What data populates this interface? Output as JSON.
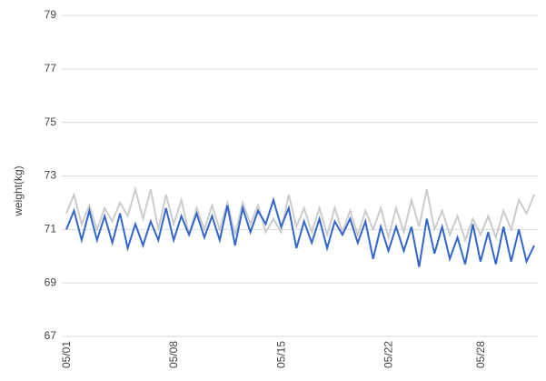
{
  "chart_data": {
    "type": "line",
    "y_label": "weight(kg)",
    "categories": [
      "05/01",
      null,
      null,
      null,
      null,
      null,
      null,
      null,
      null,
      null,
      null,
      null,
      null,
      null,
      "05/08",
      null,
      null,
      null,
      null,
      null,
      null,
      null,
      null,
      null,
      null,
      null,
      null,
      null,
      "05/15",
      null,
      null,
      null,
      null,
      null,
      null,
      null,
      null,
      null,
      null,
      null,
      null,
      null,
      "05/22",
      null,
      null,
      null,
      null,
      null,
      null,
      null,
      null,
      null,
      null,
      null,
      "05/28",
      null,
      null,
      null,
      null,
      null,
      null,
      null
    ],
    "series": [
      {
        "color": "#cccccc",
        "values": [
          71.6,
          72.3,
          71.2,
          71.9,
          71.0,
          71.8,
          71.3,
          72.0,
          71.5,
          72.5,
          71.4,
          72.5,
          71.0,
          72.3,
          71.2,
          72.1,
          70.8,
          71.8,
          71.0,
          71.9,
          71.0,
          72.0,
          70.8,
          72.0,
          71.2,
          71.9,
          70.9,
          71.4,
          70.9,
          72.3,
          71.1,
          71.8,
          70.9,
          71.8,
          70.8,
          71.8,
          70.9,
          71.7,
          70.8,
          71.7,
          71.0,
          71.8,
          70.7,
          71.8,
          70.9,
          72.1,
          71.1,
          72.5,
          71.0,
          71.7,
          70.8,
          71.5,
          70.6,
          71.4,
          70.8,
          71.5,
          70.7,
          71.7,
          71.0,
          72.1,
          71.6,
          72.3
        ]
      },
      {
        "color": "#3366cc",
        "values": [
          71.0,
          71.7,
          70.6,
          71.7,
          70.6,
          71.5,
          70.5,
          71.6,
          70.3,
          71.2,
          70.4,
          71.3,
          70.6,
          71.8,
          70.6,
          71.5,
          70.8,
          71.6,
          70.7,
          71.5,
          70.6,
          71.9,
          70.4,
          71.8,
          70.9,
          71.7,
          71.2,
          72.1,
          71.1,
          71.8,
          70.3,
          71.3,
          70.5,
          71.4,
          70.3,
          71.3,
          70.8,
          71.4,
          70.5,
          71.3,
          69.9,
          71.1,
          70.2,
          71.1,
          70.2,
          71.1,
          69.6,
          71.4,
          70.1,
          71.1,
          69.9,
          70.7,
          69.7,
          71.2,
          69.8,
          70.9,
          69.7,
          71.1,
          69.8,
          71.0,
          69.8,
          70.4
        ]
      }
    ],
    "ylim": [
      67,
      79
    ],
    "yticks": [
      67,
      69,
      71,
      73,
      75,
      77,
      79
    ],
    "grid": true
  }
}
